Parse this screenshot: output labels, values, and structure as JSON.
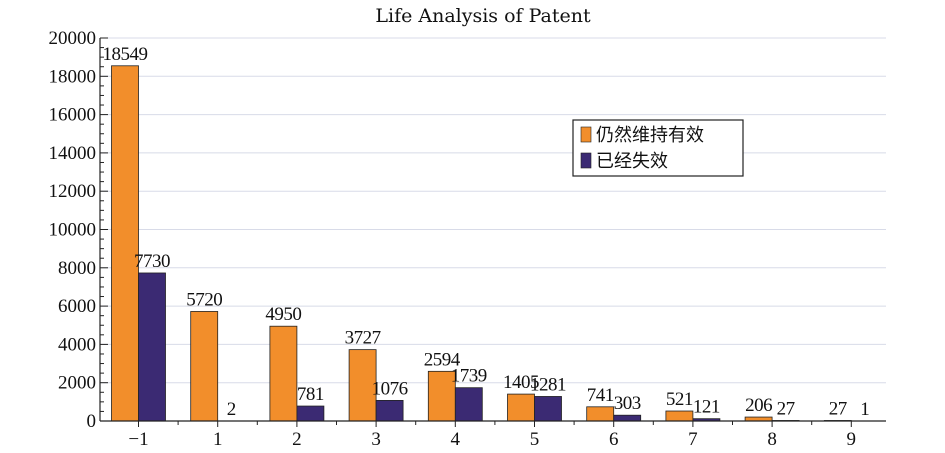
{
  "chart_data": {
    "type": "bar",
    "title": "Life Analysis of Patent",
    "categories": [
      "−1",
      "1",
      "2",
      "3",
      "4",
      "5",
      "6",
      "7",
      "8",
      "9"
    ],
    "series": [
      {
        "name": "仍然维持有效",
        "color": "#f28e2b",
        "values": [
          18549,
          5720,
          4950,
          3727,
          2594,
          1405,
          741,
          521,
          206,
          27
        ]
      },
      {
        "name": "已经失效",
        "color": "#3b2a73",
        "values": [
          7730,
          2,
          781,
          1076,
          1739,
          1281,
          303,
          121,
          27,
          1
        ]
      }
    ],
    "ylim": [
      0,
      20000
    ],
    "yticks": [
      0,
      2000,
      4000,
      6000,
      8000,
      10000,
      12000,
      14000,
      16000,
      18000,
      20000
    ],
    "grid": true,
    "legend_position": "upper-right"
  }
}
